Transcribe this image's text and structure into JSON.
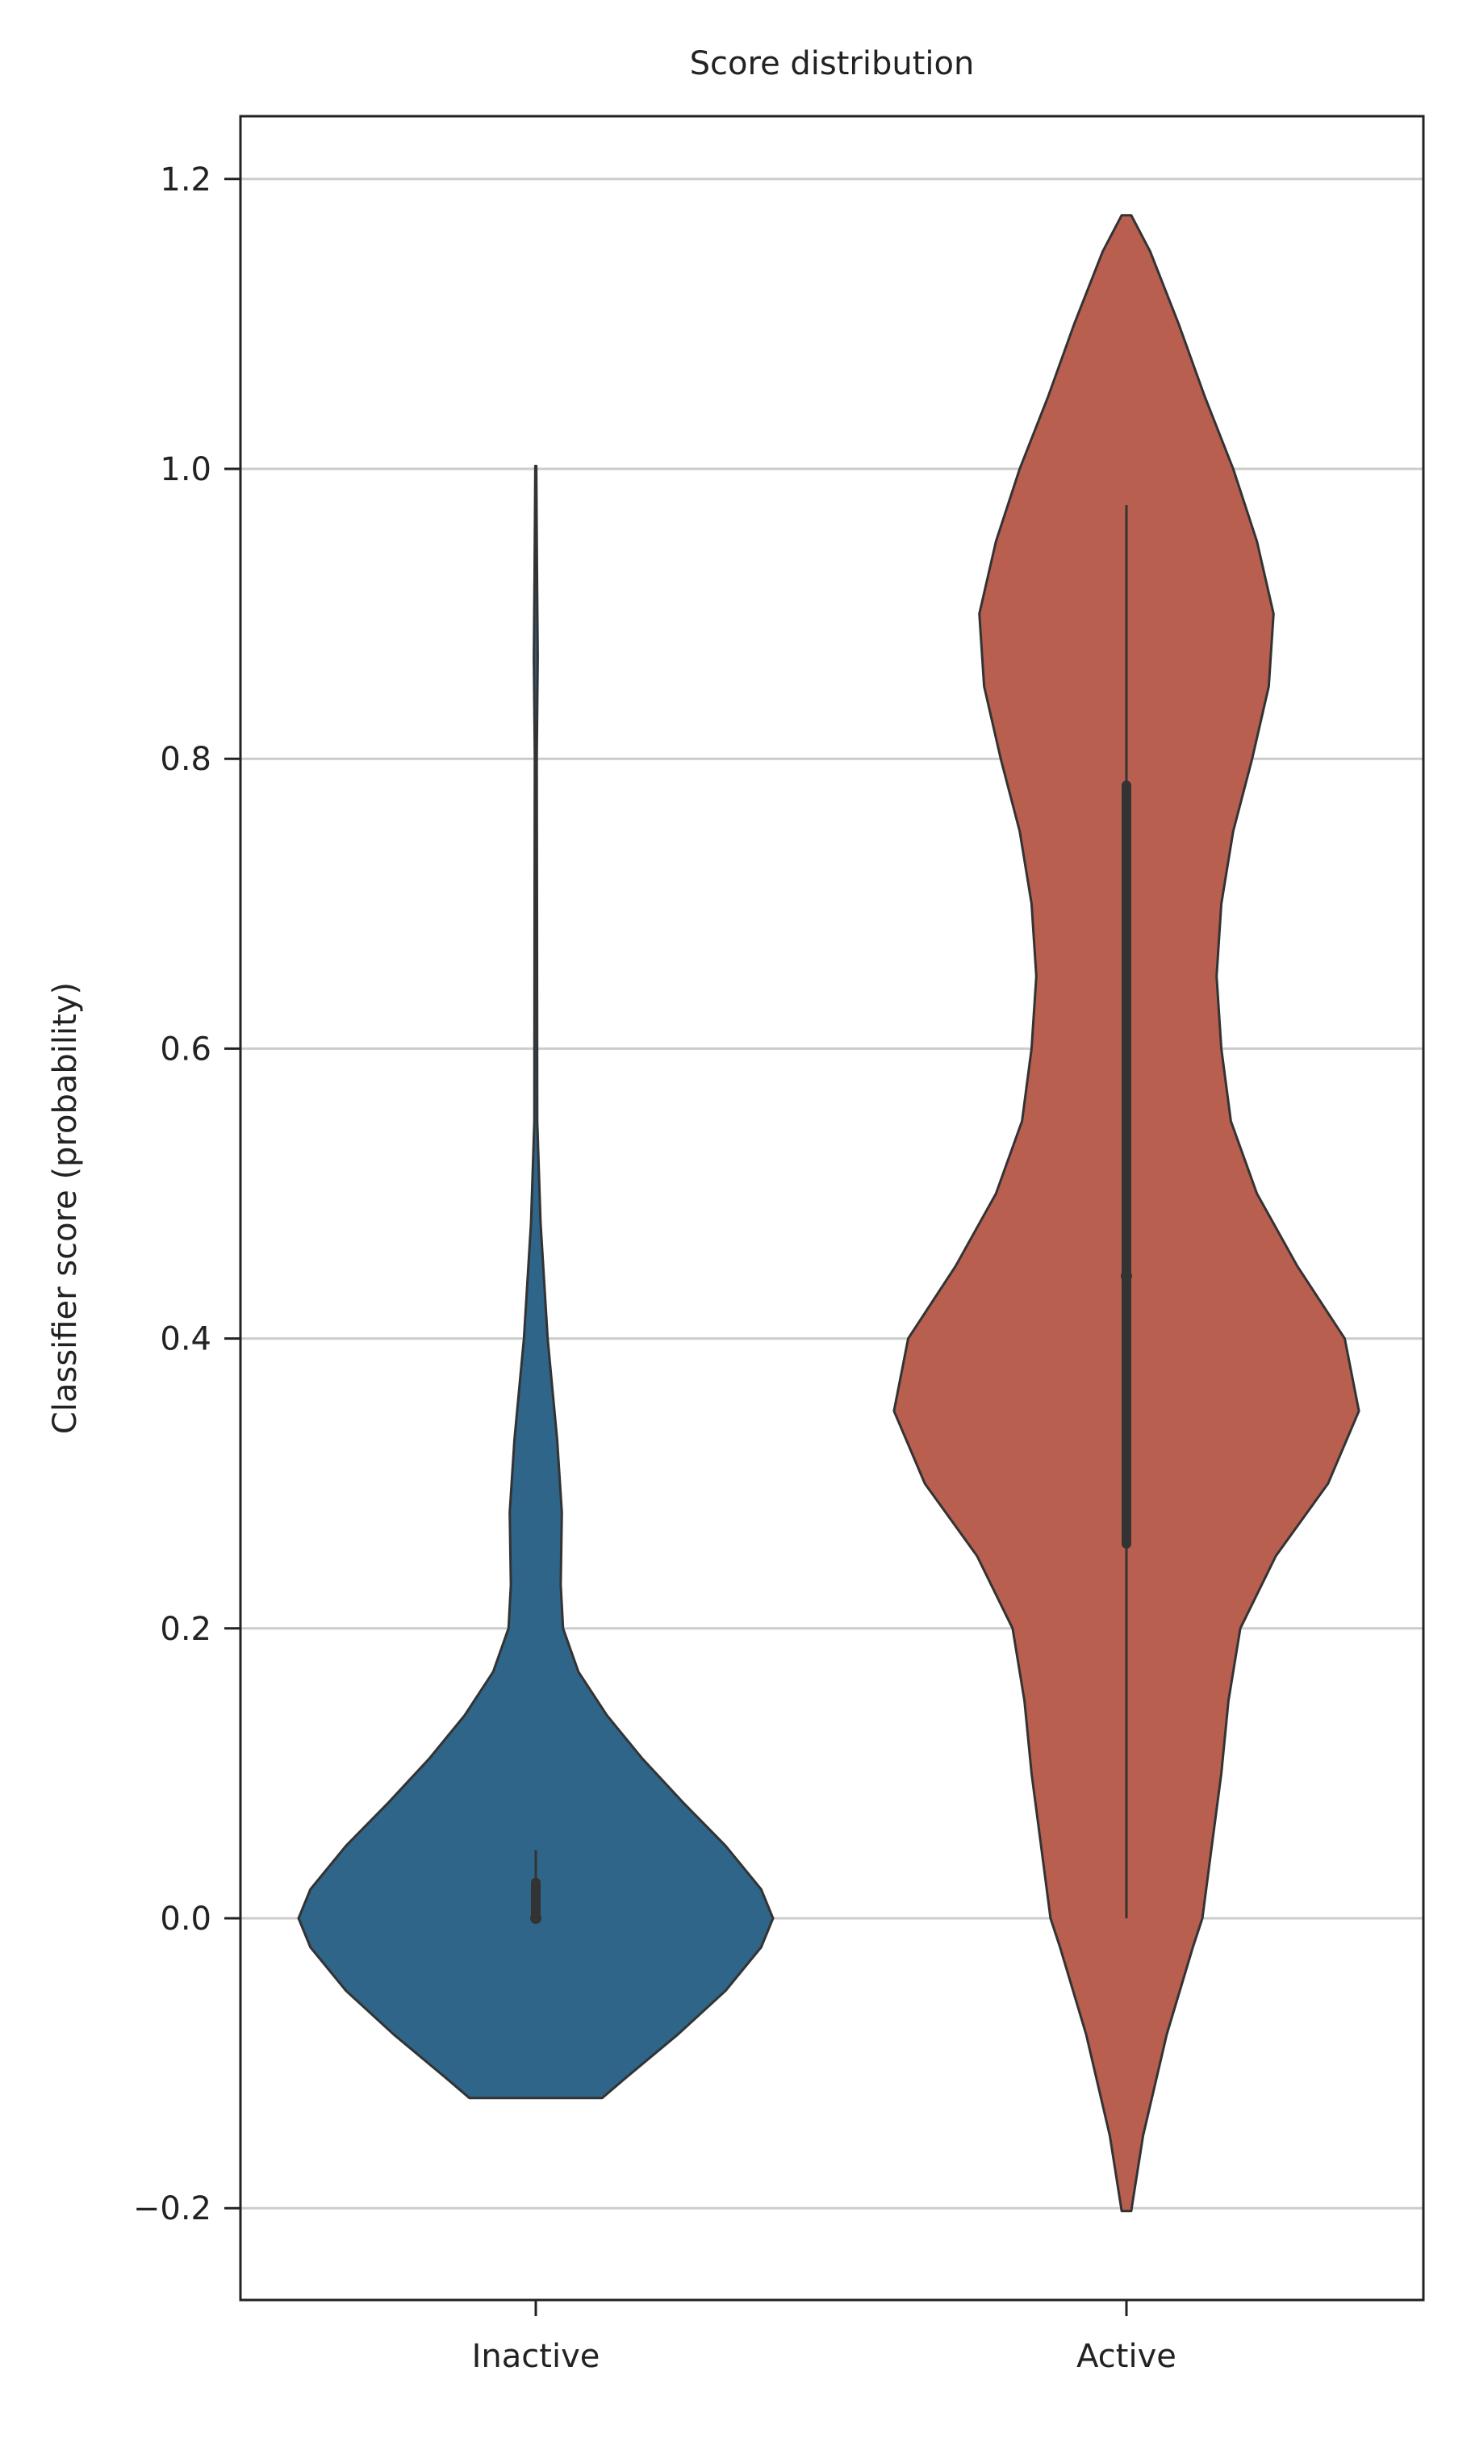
{
  "chart_data": {
    "type": "violin",
    "title": "Score distribution",
    "xlabel": "",
    "ylabel": "Classifier score (probability)",
    "ylim": [
      -0.27,
      1.25
    ],
    "yticks": [
      -0.2,
      0.0,
      0.2,
      0.4,
      0.6,
      0.8,
      1.0,
      1.2
    ],
    "ytick_labels": [
      "−0.2",
      "0.0",
      "0.2",
      "0.4",
      "0.6",
      "0.8",
      "1.0",
      "1.2"
    ],
    "grid": "horizontal",
    "categories": [
      "Inactive",
      "Active"
    ],
    "series": [
      {
        "name": "Inactive",
        "color": "#2E6588",
        "kde_range": [
          -0.124,
          1.002
        ],
        "profile": [
          [
            -0.124,
            0.28
          ],
          [
            -0.11,
            0.38
          ],
          [
            -0.08,
            0.6
          ],
          [
            -0.05,
            0.8
          ],
          [
            -0.02,
            0.95
          ],
          [
            0.0,
            1.0
          ],
          [
            0.02,
            0.95
          ],
          [
            0.05,
            0.8
          ],
          [
            0.08,
            0.62
          ],
          [
            0.11,
            0.45
          ],
          [
            0.14,
            0.3
          ],
          [
            0.17,
            0.18
          ],
          [
            0.2,
            0.115
          ],
          [
            0.23,
            0.105
          ],
          [
            0.28,
            0.11
          ],
          [
            0.33,
            0.09
          ],
          [
            0.4,
            0.05
          ],
          [
            0.48,
            0.02
          ],
          [
            0.55,
            0.006
          ],
          [
            0.7,
            0.005
          ],
          [
            0.8,
            0.004
          ],
          [
            0.87,
            0.008
          ],
          [
            0.93,
            0.005
          ],
          [
            1.002,
            0.002
          ]
        ],
        "box": {
          "q1": 0.0,
          "median": 0.0,
          "q3": 0.028,
          "whisker_low": 0.0,
          "whisker_high": 0.047
        }
      },
      {
        "name": "Active",
        "color": "#B85F50",
        "kde_range": [
          -0.202,
          1.175
        ],
        "profile": [
          [
            -0.202,
            0.02
          ],
          [
            -0.15,
            0.07
          ],
          [
            -0.08,
            0.17
          ],
          [
            -0.02,
            0.28
          ],
          [
            0.0,
            0.32
          ],
          [
            0.05,
            0.36
          ],
          [
            0.1,
            0.4
          ],
          [
            0.15,
            0.43
          ],
          [
            0.2,
            0.48
          ],
          [
            0.25,
            0.63
          ],
          [
            0.3,
            0.85
          ],
          [
            0.35,
            0.98
          ],
          [
            0.4,
            0.92
          ],
          [
            0.45,
            0.72
          ],
          [
            0.5,
            0.55
          ],
          [
            0.55,
            0.44
          ],
          [
            0.6,
            0.4
          ],
          [
            0.65,
            0.38
          ],
          [
            0.7,
            0.4
          ],
          [
            0.75,
            0.45
          ],
          [
            0.8,
            0.53
          ],
          [
            0.85,
            0.6
          ],
          [
            0.9,
            0.62
          ],
          [
            0.95,
            0.55
          ],
          [
            1.0,
            0.45
          ],
          [
            1.05,
            0.33
          ],
          [
            1.1,
            0.22
          ],
          [
            1.15,
            0.1
          ],
          [
            1.175,
            0.02
          ]
        ],
        "box": {
          "q1": 0.255,
          "median": 0.443,
          "q3": 0.785,
          "whisker_low": 0.0,
          "whisker_high": 0.975
        }
      }
    ],
    "colors": {
      "axis": "#222222",
      "grid": "#cccccc",
      "edge": "#333333",
      "box": "#333333"
    }
  }
}
